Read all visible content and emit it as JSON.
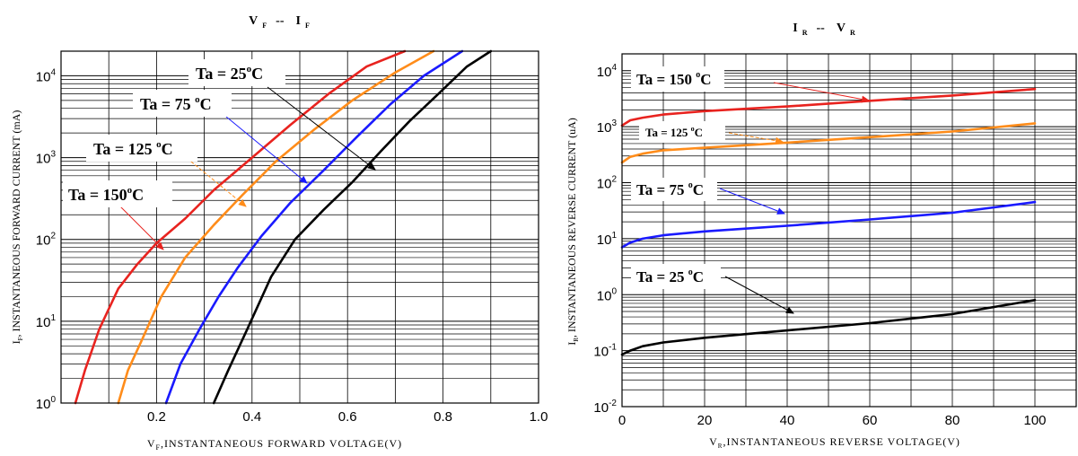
{
  "chart_data": [
    {
      "type": "line",
      "title": {
        "main": "V",
        "sub1": "F",
        "sep": "--",
        "main2": "I",
        "sub2": "F"
      },
      "xlabel": {
        "sym": "V",
        "sub": "F",
        "text": ",INSTANTANEOUS  FORWARD  VOLTAGE(V)"
      },
      "ylabel": {
        "sym": "I",
        "sub": "F",
        "text": ", INSTANTANEOUS  FORWARD  CURRENT (mA)"
      },
      "x_scale": "linear",
      "y_scale": "log",
      "xlim": [
        0,
        1.0
      ],
      "ylim": [
        1,
        20000
      ],
      "x_ticks": [
        0.2,
        0.4,
        0.6,
        0.8,
        1.0
      ],
      "x_tick_labels": [
        "0.2",
        "0.4",
        "0.6",
        "0.8",
        "1.0"
      ],
      "y_ticks": [
        {
          "base": "10",
          "exp": "0"
        },
        {
          "base": "10",
          "exp": "1"
        },
        {
          "base": "10",
          "exp": "2"
        },
        {
          "base": "10",
          "exp": "3"
        },
        {
          "base": "10",
          "exp": "4"
        }
      ],
      "grid": true,
      "series": [
        {
          "name": "Ta = 150°C",
          "color": "#e8231f",
          "x": [
            0.03,
            0.05,
            0.08,
            0.12,
            0.16,
            0.2,
            0.26,
            0.32,
            0.4,
            0.48,
            0.56,
            0.64,
            0.72
          ],
          "y": [
            1,
            2.5,
            8,
            25,
            50,
            90,
            180,
            400,
            1000,
            2500,
            6000,
            13000,
            20000
          ]
        },
        {
          "name": "Ta = 125 °C",
          "color": "#ff8c1a",
          "x": [
            0.12,
            0.14,
            0.17,
            0.21,
            0.26,
            0.32,
            0.38,
            0.45,
            0.53,
            0.61,
            0.7,
            0.78
          ],
          "y": [
            1,
            2.5,
            6,
            20,
            60,
            150,
            350,
            900,
            2200,
            5000,
            11000,
            20000
          ]
        },
        {
          "name": "Ta = 75 °C",
          "color": "#1a1aff",
          "x": [
            0.22,
            0.25,
            0.29,
            0.33,
            0.37,
            0.42,
            0.48,
            0.55,
            0.62,
            0.69,
            0.76,
            0.84
          ],
          "y": [
            1,
            3,
            8,
            20,
            45,
            110,
            280,
            700,
            1800,
            4500,
            10000,
            20000
          ]
        },
        {
          "name": "Ta = 25°C",
          "color": "#000000",
          "x": [
            0.32,
            0.35,
            0.39,
            0.44,
            0.49,
            0.55,
            0.61,
            0.67,
            0.73,
            0.79,
            0.85,
            0.9
          ],
          "y": [
            1,
            2.5,
            8,
            35,
            100,
            230,
            500,
            1200,
            2800,
            6000,
            13000,
            20000
          ]
        }
      ],
      "annotations": [
        {
          "label": "Ta = 25",
          "sup": "o",
          "unit": "C",
          "color": "#000000"
        },
        {
          "label": "Ta = 75 ",
          "sup": "o",
          "unit": "C",
          "color": "#1a1aff"
        },
        {
          "label": "Ta = 125 ",
          "sup": "o",
          "unit": "C",
          "color": "#ff8c1a"
        },
        {
          "label": "Ta = 150",
          "sup": "o",
          "unit": "C",
          "color": "#e8231f"
        }
      ]
    },
    {
      "type": "line",
      "title": {
        "main": "I",
        "sub1": "R",
        "sep": "--",
        "main2": "V",
        "sub2": "R"
      },
      "xlabel": {
        "sym": "V",
        "sub": "R",
        "text": ",INSTANTANEOUS  REVERSE  VOLTAGE(V)"
      },
      "ylabel": {
        "sym": "I",
        "sub": "R",
        "text": ", INSTANTANEOUS  REVERSE  CURRENT  (uA)"
      },
      "x_scale": "linear",
      "y_scale": "log",
      "xlim": [
        0,
        110
      ],
      "ylim": [
        0.01,
        20000
      ],
      "x_ticks": [
        0,
        20,
        40,
        60,
        80,
        100
      ],
      "x_tick_labels": [
        "0",
        "20",
        "40",
        "60",
        "80",
        "100"
      ],
      "y_ticks": [
        {
          "base": "10",
          "exp": "-2"
        },
        {
          "base": "10",
          "exp": "-1"
        },
        {
          "base": "10",
          "exp": "0"
        },
        {
          "base": "10",
          "exp": "1"
        },
        {
          "base": "10",
          "exp": "2"
        },
        {
          "base": "10",
          "exp": "3"
        },
        {
          "base": "10",
          "exp": "4"
        }
      ],
      "grid": true,
      "series": [
        {
          "name": "Ta = 150 °C",
          "color": "#e8231f",
          "x": [
            0,
            2,
            5,
            10,
            20,
            40,
            60,
            80,
            100
          ],
          "y": [
            1050,
            1300,
            1450,
            1650,
            1900,
            2300,
            2900,
            3600,
            4700
          ]
        },
        {
          "name": "Ta = 125 °C",
          "color": "#ff8c1a",
          "x": [
            0,
            2,
            5,
            10,
            20,
            40,
            60,
            80,
            100
          ],
          "y": [
            230,
            290,
            330,
            380,
            420,
            520,
            650,
            820,
            1150
          ]
        },
        {
          "name": "Ta = 75 °C",
          "color": "#1a1aff",
          "x": [
            0,
            2,
            5,
            10,
            20,
            40,
            60,
            80,
            100
          ],
          "y": [
            7,
            8.5,
            10,
            11.5,
            13.5,
            17,
            22,
            29,
            45
          ]
        },
        {
          "name": "Ta = 25 °C",
          "color": "#000000",
          "x": [
            0,
            2,
            5,
            10,
            20,
            40,
            60,
            80,
            100
          ],
          "y": [
            0.085,
            0.1,
            0.12,
            0.14,
            0.17,
            0.23,
            0.31,
            0.45,
            0.8
          ]
        }
      ],
      "annotations": [
        {
          "label": "Ta = 150 ",
          "sup": "o",
          "unit": "C",
          "color": "#e8231f"
        },
        {
          "label": "Ta = 125 ",
          "sup": "o",
          "unit": "C",
          "color": "#ff8c1a"
        },
        {
          "label": "Ta = 75 ",
          "sup": "o",
          "unit": "C",
          "color": "#1a1aff"
        },
        {
          "label": "Ta = 25 ",
          "sup": "o",
          "unit": "C",
          "color": "#000000"
        }
      ]
    }
  ]
}
